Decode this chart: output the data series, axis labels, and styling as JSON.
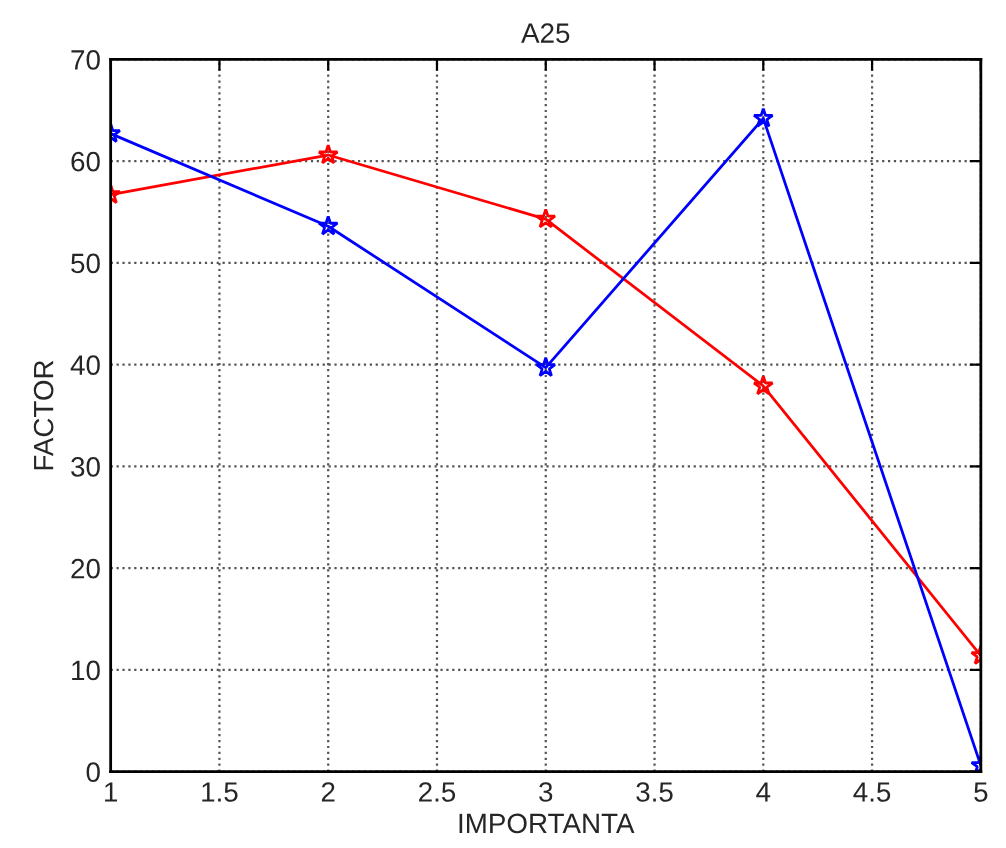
{
  "chart_data": {
    "type": "line",
    "title": "A25",
    "xlabel": "IMPORTANTA",
    "ylabel": "FACTOR",
    "x": [
      1,
      2,
      3,
      4,
      5
    ],
    "series": [
      {
        "color": "#ff0000",
        "values": [
          56.7,
          60.6,
          54.3,
          37.9,
          11.4
        ]
      },
      {
        "color": "#0000ff",
        "values": [
          62.7,
          53.6,
          39.7,
          64.2,
          0.6
        ]
      }
    ],
    "xlim": [
      1,
      5
    ],
    "xticks": [
      1,
      1.5,
      2,
      2.5,
      3,
      3.5,
      4,
      4.5,
      5
    ],
    "ylim": [
      0,
      70
    ],
    "yticks": [
      0,
      10,
      20,
      30,
      40,
      50,
      60,
      70
    ],
    "grid": true,
    "marker": "star",
    "line_style": "solid",
    "legend": false
  }
}
